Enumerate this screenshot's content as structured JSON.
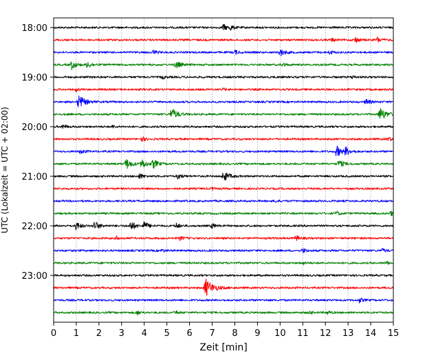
{
  "chart_data": {
    "type": "line",
    "title": "",
    "xlabel": "Zeit  [min]",
    "ylabel": "UTC (Lokalzeit = UTC + 02:00)",
    "xlim": [
      0,
      15
    ],
    "x_ticks": [
      0,
      1,
      2,
      3,
      4,
      5,
      6,
      7,
      8,
      9,
      10,
      11,
      12,
      13,
      14,
      15
    ],
    "y_tick_labels": [
      "18:00",
      "19:00",
      "20:00",
      "21:00",
      "22:00",
      "23:00"
    ],
    "grid": "vertical dotted",
    "series_colors": [
      "#000000",
      "#ff0000",
      "#0000ff",
      "#008000"
    ],
    "traces": [
      {
        "start": "18:00",
        "events": [
          {
            "t": 7.5,
            "amp": 0.4
          },
          {
            "t": 7.8,
            "amp": 0.3
          }
        ]
      },
      {
        "start": "18:15",
        "events": [
          {
            "t": 12.3,
            "amp": 0.2
          },
          {
            "t": 13.3,
            "amp": 0.4
          },
          {
            "t": 14.3,
            "amp": 0.35
          }
        ]
      },
      {
        "start": "18:30",
        "events": [
          {
            "t": 4.4,
            "amp": 0.3
          },
          {
            "t": 8.0,
            "amp": 0.3
          },
          {
            "t": 10.0,
            "amp": 0.5
          },
          {
            "t": 12.2,
            "amp": 0.25
          }
        ]
      },
      {
        "start": "18:45",
        "events": [
          {
            "t": 0.8,
            "amp": 0.55
          },
          {
            "t": 1.5,
            "amp": 0.45
          },
          {
            "t": 5.4,
            "amp": 0.5
          },
          {
            "t": 10.1,
            "amp": 0.25
          }
        ]
      },
      {
        "start": "19:00",
        "events": [
          {
            "t": 4.8,
            "amp": 0.2
          },
          {
            "t": 13.2,
            "amp": 0.2
          }
        ]
      },
      {
        "start": "19:15",
        "events": [
          {
            "t": 1.0,
            "amp": 0.2
          },
          {
            "t": 7.5,
            "amp": 0.15
          }
        ]
      },
      {
        "start": "19:30",
        "events": [
          {
            "t": 1.1,
            "amp": 0.9
          },
          {
            "t": 13.8,
            "amp": 0.4
          }
        ]
      },
      {
        "start": "19:45",
        "events": [
          {
            "t": 5.2,
            "amp": 0.8
          },
          {
            "t": 14.4,
            "amp": 0.9
          }
        ]
      },
      {
        "start": "20:00",
        "events": [
          {
            "t": 0.4,
            "amp": 0.3
          },
          {
            "t": 2.6,
            "amp": 0.15
          }
        ]
      },
      {
        "start": "20:15",
        "events": [
          {
            "t": 3.9,
            "amp": 0.3
          },
          {
            "t": 14.8,
            "amp": 0.25
          }
        ]
      },
      {
        "start": "20:30",
        "events": [
          {
            "t": 1.2,
            "amp": 0.3
          },
          {
            "t": 12.5,
            "amp": 0.7
          },
          {
            "t": 12.9,
            "amp": 0.5
          }
        ]
      },
      {
        "start": "20:45",
        "events": [
          {
            "t": 3.2,
            "amp": 0.7
          },
          {
            "t": 3.9,
            "amp": 0.6
          },
          {
            "t": 4.4,
            "amp": 0.55
          },
          {
            "t": 12.6,
            "amp": 0.5
          }
        ]
      },
      {
        "start": "21:00",
        "events": [
          {
            "t": 3.8,
            "amp": 0.35
          },
          {
            "t": 5.5,
            "amp": 0.35
          },
          {
            "t": 7.5,
            "amp": 0.7
          }
        ]
      },
      {
        "start": "21:15",
        "events": [
          {
            "t": 7.0,
            "amp": 0.15
          }
        ]
      },
      {
        "start": "21:30",
        "events": [
          {
            "t": 9.8,
            "amp": 0.15
          }
        ]
      },
      {
        "start": "21:45",
        "events": [
          {
            "t": 12.5,
            "amp": 0.25
          },
          {
            "t": 14.9,
            "amp": 0.3
          }
        ]
      },
      {
        "start": "22:00",
        "events": [
          {
            "t": 1.0,
            "amp": 0.5
          },
          {
            "t": 1.8,
            "amp": 0.6
          },
          {
            "t": 3.4,
            "amp": 0.6
          },
          {
            "t": 4.0,
            "amp": 0.5
          },
          {
            "t": 5.4,
            "amp": 0.35
          },
          {
            "t": 7.0,
            "amp": 0.3
          }
        ]
      },
      {
        "start": "22:15",
        "events": [
          {
            "t": 2.8,
            "amp": 0.25
          },
          {
            "t": 5.6,
            "amp": 0.25
          },
          {
            "t": 10.7,
            "amp": 0.35
          }
        ]
      },
      {
        "start": "22:30",
        "events": [
          {
            "t": 4.8,
            "amp": 0.2
          },
          {
            "t": 11.0,
            "amp": 0.3
          },
          {
            "t": 14.5,
            "amp": 0.25
          }
        ]
      },
      {
        "start": "22:45",
        "events": [
          {
            "t": 11.0,
            "amp": 0.2
          },
          {
            "t": 14.7,
            "amp": 0.2
          }
        ]
      },
      {
        "start": "23:00",
        "events": []
      },
      {
        "start": "23:15",
        "events": [
          {
            "t": 6.7,
            "amp": 1.2
          }
        ]
      },
      {
        "start": "23:30",
        "events": [
          {
            "t": 13.5,
            "amp": 0.3
          }
        ]
      },
      {
        "start": "23:45",
        "events": [
          {
            "t": 3.7,
            "amp": 0.25
          },
          {
            "t": 5.4,
            "amp": 0.2
          },
          {
            "t": 11.3,
            "amp": 0.2
          },
          {
            "t": 12.1,
            "amp": 0.25
          }
        ]
      }
    ]
  }
}
